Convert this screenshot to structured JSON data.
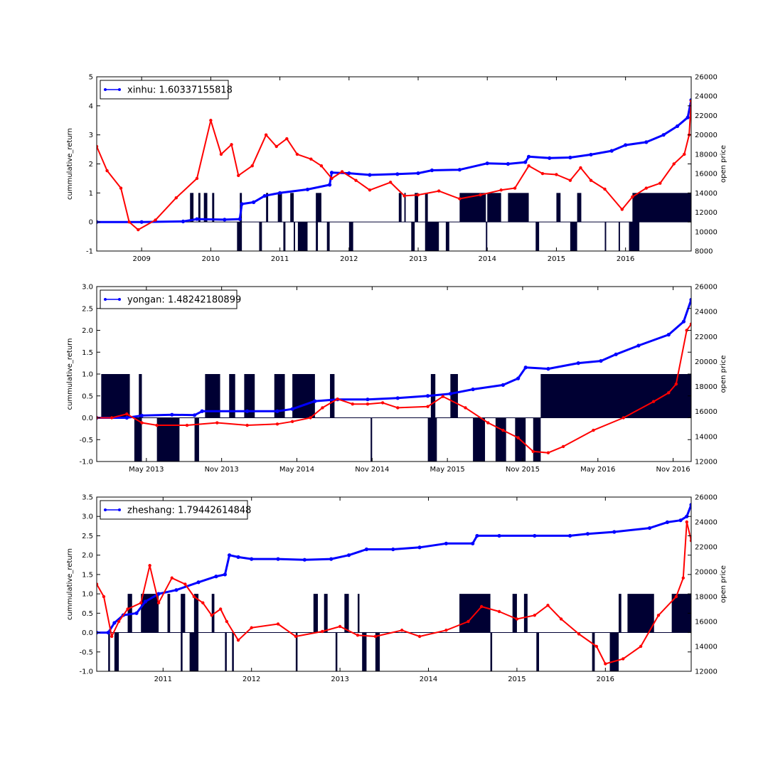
{
  "figure": {
    "colors": {
      "cumret": "#0000ff",
      "price": "#ff0000",
      "signal": "#000033",
      "background": "#ffffff"
    }
  },
  "chart_data": [
    {
      "type": "line",
      "legend_label": "xinhu: 1.60337155818",
      "ylabel": "cummulative_return",
      "y2label": "open price",
      "xlim": [
        2008.35,
        2016.95
      ],
      "ylim": [
        -1,
        5
      ],
      "yticks": [
        -1,
        0,
        1,
        2,
        3,
        4,
        5
      ],
      "y2lim": [
        8000,
        26000
      ],
      "y2ticks": [
        8000,
        10000,
        12000,
        14000,
        16000,
        18000,
        20000,
        22000,
        24000,
        26000
      ],
      "xticks": [
        {
          "x": 2009,
          "label": "2009"
        },
        {
          "x": 2010,
          "label": "2010"
        },
        {
          "x": 2011,
          "label": "2011"
        },
        {
          "x": 2012,
          "label": "2012"
        },
        {
          "x": 2013,
          "label": "2013"
        },
        {
          "x": 2014,
          "label": "2014"
        },
        {
          "x": 2015,
          "label": "2015"
        },
        {
          "x": 2016,
          "label": "2016"
        }
      ],
      "legend_loc": "upper left",
      "grid": false,
      "series": [
        {
          "role": "cumret",
          "x": [
            2008.35,
            2009.0,
            2009.6,
            2009.8,
            2010.2,
            2010.42,
            2010.45,
            2010.62,
            2010.78,
            2011.0,
            2011.4,
            2011.72,
            2011.75,
            2012.0,
            2012.3,
            2012.7,
            2013.0,
            2013.2,
            2013.6,
            2014.0,
            2014.3,
            2014.55,
            2014.6,
            2014.9,
            2015.2,
            2015.5,
            2015.8,
            2016.0,
            2016.3,
            2016.55,
            2016.75,
            2016.9,
            2016.95
          ],
          "values": [
            0.0,
            0.0,
            0.02,
            0.1,
            0.08,
            0.1,
            0.62,
            0.68,
            0.9,
            1.0,
            1.12,
            1.28,
            1.7,
            1.68,
            1.62,
            1.65,
            1.68,
            1.78,
            1.8,
            2.02,
            2.0,
            2.06,
            2.25,
            2.2,
            2.22,
            2.32,
            2.45,
            2.65,
            2.75,
            3.0,
            3.3,
            3.6,
            4.2
          ]
        },
        {
          "role": "price",
          "x": [
            2008.35,
            2008.5,
            2008.7,
            2008.82,
            2008.95,
            2009.2,
            2009.5,
            2009.8,
            2010.0,
            2010.15,
            2010.3,
            2010.4,
            2010.6,
            2010.8,
            2010.95,
            2011.1,
            2011.25,
            2011.45,
            2011.6,
            2011.75,
            2011.9,
            2012.1,
            2012.3,
            2012.6,
            2012.8,
            2013.0,
            2013.3,
            2013.6,
            2013.9,
            2014.2,
            2014.4,
            2014.6,
            2014.8,
            2015.0,
            2015.2,
            2015.35,
            2015.5,
            2015.7,
            2015.95,
            2016.1,
            2016.3,
            2016.5,
            2016.7,
            2016.85,
            2016.92,
            2016.95
          ],
          "values": [
            18800,
            16300,
            14500,
            11000,
            10200,
            11200,
            13500,
            15500,
            21500,
            18000,
            19000,
            15800,
            16800,
            20000,
            18800,
            19600,
            18000,
            17500,
            16800,
            15500,
            16200,
            15300,
            14300,
            15100,
            13700,
            13800,
            14200,
            13400,
            13800,
            14300,
            14500,
            16800,
            16000,
            15900,
            15300,
            16600,
            15300,
            14400,
            12300,
            13600,
            14500,
            15000,
            17000,
            18000,
            20000,
            23500
          ]
        }
      ],
      "signals_pos": [
        [
          2009.7,
          2009.75
        ],
        [
          2009.82,
          2009.85
        ],
        [
          2009.9,
          2009.95
        ],
        [
          2010.02,
          2010.05
        ],
        [
          2010.42,
          2010.45
        ],
        [
          2010.8,
          2010.83
        ],
        [
          2010.97,
          2011.03
        ],
        [
          2011.15,
          2011.2
        ],
        [
          2011.52,
          2011.6
        ],
        [
          2012.72,
          2012.76
        ],
        [
          2012.8,
          2012.82
        ],
        [
          2012.95,
          2013.0
        ],
        [
          2013.1,
          2013.14
        ],
        [
          2013.6,
          2013.98
        ],
        [
          2014.0,
          2014.2
        ],
        [
          2014.3,
          2014.6
        ],
        [
          2015.0,
          2015.06
        ],
        [
          2015.3,
          2015.36
        ],
        [
          2016.1,
          2016.95
        ]
      ],
      "signals_neg": [
        [
          2010.38,
          2010.45
        ],
        [
          2010.7,
          2010.74
        ],
        [
          2011.05,
          2011.08
        ],
        [
          2011.2,
          2011.22
        ],
        [
          2011.26,
          2011.4
        ],
        [
          2011.52,
          2011.55
        ],
        [
          2011.68,
          2011.72
        ],
        [
          2012.0,
          2012.06
        ],
        [
          2012.9,
          2012.95
        ],
        [
          2013.1,
          2013.3
        ],
        [
          2013.4,
          2013.45
        ],
        [
          2013.98,
          2014.0
        ],
        [
          2014.7,
          2014.75
        ],
        [
          2015.2,
          2015.3
        ],
        [
          2015.7,
          2015.72
        ],
        [
          2015.9,
          2015.92
        ],
        [
          2016.05,
          2016.2
        ]
      ]
    },
    {
      "type": "line",
      "legend_label": "yongan: 1.48242180899",
      "ylabel": "cummulative_return",
      "y2label": "open price",
      "xlim": [
        2013.0,
        2016.95
      ],
      "ylim": [
        -1.0,
        3.0
      ],
      "yticks": [
        -1.0,
        -0.5,
        0.0,
        0.5,
        1.0,
        1.5,
        2.0,
        2.5,
        3.0
      ],
      "y2lim": [
        12000,
        26000
      ],
      "y2ticks": [
        12000,
        14000,
        16000,
        18000,
        20000,
        22000,
        24000,
        26000
      ],
      "xticks": [
        {
          "x": 2013.33,
          "label": "May 2013"
        },
        {
          "x": 2013.83,
          "label": "Nov 2013"
        },
        {
          "x": 2014.33,
          "label": "May 2014"
        },
        {
          "x": 2014.83,
          "label": "Nov 2014"
        },
        {
          "x": 2015.33,
          "label": "May 2015"
        },
        {
          "x": 2015.83,
          "label": "Nov 2015"
        },
        {
          "x": 2016.33,
          "label": "May 2016"
        },
        {
          "x": 2016.83,
          "label": "Nov 2016"
        }
      ],
      "legend_loc": "upper left",
      "grid": false,
      "series": [
        {
          "role": "cumret",
          "x": [
            2013.0,
            2013.2,
            2013.3,
            2013.5,
            2013.65,
            2013.7,
            2014.0,
            2014.2,
            2014.3,
            2014.45,
            2014.6,
            2014.8,
            2015.0,
            2015.2,
            2015.35,
            2015.5,
            2015.7,
            2015.8,
            2015.85,
            2016.0,
            2016.2,
            2016.35,
            2016.45,
            2016.6,
            2016.8,
            2016.9,
            2016.95
          ],
          "values": [
            0.0,
            0.0,
            0.05,
            0.07,
            0.06,
            0.15,
            0.15,
            0.15,
            0.2,
            0.38,
            0.42,
            0.42,
            0.45,
            0.5,
            0.55,
            0.65,
            0.75,
            0.9,
            1.15,
            1.12,
            1.25,
            1.3,
            1.45,
            1.65,
            1.9,
            2.2,
            2.7
          ]
        },
        {
          "role": "price",
          "x": [
            2013.0,
            2013.1,
            2013.2,
            2013.3,
            2013.4,
            2013.6,
            2013.8,
            2014.0,
            2014.2,
            2014.3,
            2014.42,
            2014.5,
            2014.6,
            2014.7,
            2014.8,
            2014.9,
            2015.0,
            2015.2,
            2015.3,
            2015.45,
            2015.6,
            2015.7,
            2015.8,
            2015.9,
            2016.0,
            2016.1,
            2016.3,
            2016.5,
            2016.7,
            2016.8,
            2016.85,
            2016.92,
            2016.95
          ],
          "values": [
            15500,
            15500,
            15800,
            15100,
            14900,
            14900,
            15100,
            14900,
            15000,
            15200,
            15500,
            16300,
            17000,
            16600,
            16600,
            16700,
            16300,
            16400,
            17200,
            16300,
            15100,
            14500,
            13900,
            12800,
            12700,
            13200,
            14500,
            15500,
            16800,
            17500,
            18200,
            22500,
            23000
          ]
        }
      ],
      "signals_pos": [
        [
          2013.03,
          2013.22
        ],
        [
          2013.28,
          2013.3
        ],
        [
          2013.72,
          2013.82
        ],
        [
          2013.88,
          2013.92
        ],
        [
          2013.98,
          2014.05
        ],
        [
          2014.18,
          2014.25
        ],
        [
          2014.3,
          2014.45
        ],
        [
          2014.55,
          2014.58
        ],
        [
          2015.22,
          2015.25
        ],
        [
          2015.35,
          2015.4
        ],
        [
          2015.95,
          2016.95
        ]
      ],
      "signals_neg": [
        [
          2013.25,
          2013.3
        ],
        [
          2013.4,
          2013.55
        ],
        [
          2013.65,
          2013.68
        ],
        [
          2014.82,
          2014.83
        ],
        [
          2015.2,
          2015.26
        ],
        [
          2015.5,
          2015.58
        ],
        [
          2015.65,
          2015.72
        ],
        [
          2015.78,
          2015.85
        ],
        [
          2015.9,
          2015.95
        ]
      ]
    },
    {
      "type": "line",
      "legend_label": "zheshang: 1.79442614848",
      "ylabel": "cummulative_return",
      "y2label": "open price",
      "xlim": [
        2010.25,
        2016.97
      ],
      "ylim": [
        -1.0,
        3.5
      ],
      "yticks": [
        -1.0,
        -0.5,
        0.0,
        0.5,
        1.0,
        1.5,
        2.0,
        2.5,
        3.0,
        3.5
      ],
      "y2lim": [
        12000,
        26000
      ],
      "y2ticks": [
        12000,
        14000,
        16000,
        18000,
        20000,
        22000,
        24000,
        26000
      ],
      "xticks": [
        {
          "x": 2011,
          "label": "2011"
        },
        {
          "x": 2012,
          "label": "2012"
        },
        {
          "x": 2013,
          "label": "2013"
        },
        {
          "x": 2014,
          "label": "2014"
        },
        {
          "x": 2015,
          "label": "2015"
        },
        {
          "x": 2016,
          "label": "2016"
        }
      ],
      "legend_loc": "upper left",
      "grid": false,
      "series": [
        {
          "role": "cumret",
          "x": [
            2010.25,
            2010.38,
            2010.45,
            2010.55,
            2010.7,
            2010.8,
            2010.95,
            2011.15,
            2011.4,
            2011.6,
            2011.7,
            2011.75,
            2011.85,
            2012.0,
            2012.3,
            2012.6,
            2012.9,
            2013.1,
            2013.3,
            2013.6,
            2013.9,
            2014.2,
            2014.5,
            2014.55,
            2014.8,
            2015.2,
            2015.6,
            2015.8,
            2016.1,
            2016.5,
            2016.7,
            2016.85,
            2016.92,
            2016.97
          ],
          "values": [
            0.0,
            0.0,
            0.25,
            0.45,
            0.5,
            0.8,
            1.0,
            1.1,
            1.3,
            1.45,
            1.5,
            2.0,
            1.95,
            1.9,
            1.9,
            1.88,
            1.9,
            2.0,
            2.15,
            2.15,
            2.2,
            2.3,
            2.3,
            2.5,
            2.5,
            2.5,
            2.5,
            2.55,
            2.6,
            2.7,
            2.85,
            2.9,
            3.0,
            3.3
          ]
        },
        {
          "role": "price",
          "x": [
            2010.25,
            2010.33,
            2010.42,
            2010.5,
            2010.6,
            2010.75,
            2010.85,
            2010.95,
            2011.1,
            2011.25,
            2011.35,
            2011.45,
            2011.55,
            2011.65,
            2011.72,
            2011.85,
            2012.0,
            2012.3,
            2012.5,
            2012.8,
            2013.0,
            2013.2,
            2013.4,
            2013.7,
            2013.9,
            2014.2,
            2014.45,
            2014.6,
            2014.8,
            2015.0,
            2015.2,
            2015.35,
            2015.5,
            2015.7,
            2015.9,
            2016.0,
            2016.2,
            2016.4,
            2016.6,
            2016.8,
            2016.88,
            2016.92,
            2016.97
          ],
          "values": [
            19000,
            18000,
            14800,
            16000,
            17000,
            17500,
            20500,
            17500,
            19500,
            19000,
            18000,
            17500,
            16500,
            17000,
            16000,
            14500,
            15500,
            15800,
            14800,
            15200,
            15600,
            14900,
            14800,
            15300,
            14800,
            15300,
            16000,
            17200,
            16800,
            16200,
            16500,
            17300,
            16200,
            15000,
            14000,
            12600,
            13000,
            14000,
            16500,
            18000,
            19500,
            24000,
            22500
          ]
        }
      ],
      "signals_pos": [
        [
          2010.6,
          2010.65
        ],
        [
          2010.75,
          2010.95
        ],
        [
          2011.05,
          2011.08
        ],
        [
          2011.2,
          2011.25
        ],
        [
          2011.35,
          2011.4
        ],
        [
          2011.55,
          2011.58
        ],
        [
          2012.7,
          2012.75
        ],
        [
          2012.82,
          2012.86
        ],
        [
          2013.05,
          2013.1
        ],
        [
          2013.2,
          2013.22
        ],
        [
          2014.35,
          2014.7
        ],
        [
          2014.95,
          2015.0
        ],
        [
          2015.08,
          2015.12
        ],
        [
          2016.15,
          2016.18
        ],
        [
          2016.25,
          2016.55
        ],
        [
          2016.75,
          2016.97
        ]
      ],
      "signals_neg": [
        [
          2010.38,
          2010.4
        ],
        [
          2010.45,
          2010.5
        ],
        [
          2011.2,
          2011.22
        ],
        [
          2011.3,
          2011.4
        ],
        [
          2011.7,
          2011.72
        ],
        [
          2011.78,
          2011.8
        ],
        [
          2012.5,
          2012.52
        ],
        [
          2012.95,
          2012.97
        ],
        [
          2013.25,
          2013.3
        ],
        [
          2013.4,
          2013.45
        ],
        [
          2014.7,
          2014.72
        ],
        [
          2015.22,
          2015.25
        ],
        [
          2015.85,
          2015.88
        ],
        [
          2016.05,
          2016.15
        ]
      ]
    }
  ]
}
